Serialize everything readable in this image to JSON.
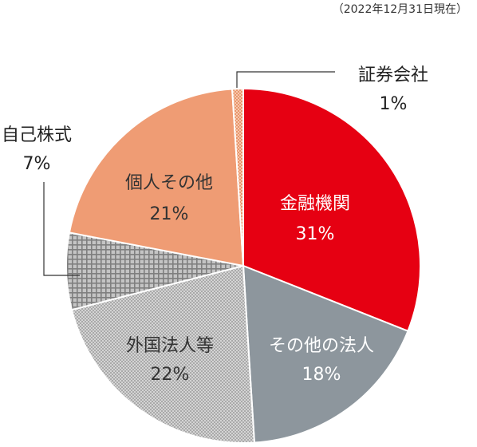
{
  "chart_data": {
    "type": "pie",
    "note": "（2022年12月31日現在）",
    "slices": [
      {
        "label": "金融機関",
        "value": 31,
        "value_label": "31%",
        "color": "#e60012",
        "pattern": "solid"
      },
      {
        "label": "その他の法人",
        "value": 18,
        "value_label": "18%",
        "color": "#8d969d",
        "pattern": "solid"
      },
      {
        "label": "外国法人等",
        "value": 22,
        "value_label": "22%",
        "color": "#c9c9c9",
        "pattern": "fine-check"
      },
      {
        "label": "自己株式",
        "value": 7,
        "value_label": "7%",
        "color": "#9c9c9c",
        "pattern": "grid"
      },
      {
        "label": "個人その他",
        "value": 21,
        "value_label": "21%",
        "color": "#ef9c74",
        "pattern": "solid"
      },
      {
        "label": "証券会社",
        "value": 1,
        "value_label": "1%",
        "color": "#ef9c74",
        "pattern": "orange-check"
      }
    ]
  }
}
